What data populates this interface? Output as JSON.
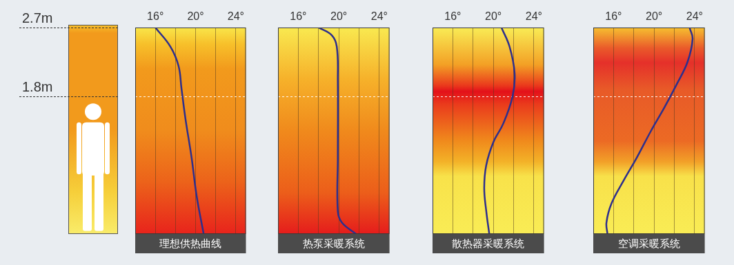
{
  "chart_data": [
    {
      "type": "line",
      "title": "理想供热曲线",
      "color": "#2e2f8c",
      "grid": true,
      "tick_labels": "x",
      "x": [
        16.0,
        17.5,
        18.3,
        18.6,
        19.0,
        19.6,
        20.1,
        20.8
      ],
      "y": [
        2.7,
        2.45,
        2.2,
        1.9,
        1.5,
        1.0,
        0.5,
        0.0
      ],
      "xlim": [
        14,
        25
      ],
      "xticks": [
        {
          "value": 16,
          "label": "16°"
        },
        {
          "value": 20,
          "label": "20°"
        },
        {
          "value": 24,
          "label": "24°"
        }
      ],
      "ylim": [
        0,
        2.7
      ],
      "yticks": [
        {
          "value": 1.8,
          "label": "1.8m"
        },
        {
          "value": 2.7,
          "label": "2.7m"
        }
      ]
    },
    {
      "type": "line",
      "title": "热泵采暖系统",
      "color": "#2e2f8c",
      "grid": true,
      "tick_labels": "x",
      "x": [
        18.0,
        19.3,
        19.8,
        19.9,
        19.9,
        19.9,
        20.3,
        21.7
      ],
      "y": [
        2.7,
        2.6,
        2.45,
        2.0,
        1.0,
        0.3,
        0.15,
        0.0
      ],
      "xlim": [
        14,
        25
      ],
      "xticks": [
        {
          "value": 16,
          "label": "16°"
        },
        {
          "value": 20,
          "label": "20°"
        },
        {
          "value": 24,
          "label": "24°"
        }
      ],
      "ylim": [
        0,
        2.7
      ],
      "yticks": [
        {
          "value": 1.8,
          "label": "1.8m"
        },
        {
          "value": 2.7,
          "label": "2.7m"
        }
      ]
    },
    {
      "type": "line",
      "title": "散热器采暖系统",
      "color": "#2e2f8c",
      "grid": true,
      "tick_labels": "x",
      "x": [
        20.8,
        21.6,
        22.1,
        21.9,
        21.0,
        20.0,
        19.3,
        19.1,
        19.3,
        19.6
      ],
      "y": [
        2.7,
        2.45,
        2.1,
        1.8,
        1.45,
        1.2,
        0.9,
        0.6,
        0.3,
        0.0
      ],
      "xlim": [
        14,
        25
      ],
      "xticks": [
        {
          "value": 16,
          "label": "16°"
        },
        {
          "value": 20,
          "label": "20°"
        },
        {
          "value": 24,
          "label": "24°"
        }
      ],
      "ylim": [
        0,
        2.7
      ],
      "yticks": [
        {
          "value": 1.8,
          "label": "1.8m"
        },
        {
          "value": 2.7,
          "label": "2.7m"
        }
      ]
    },
    {
      "type": "line",
      "title": "空调采暖系统",
      "color": "#2e2f8c",
      "grid": true,
      "tick_labels": "x",
      "x": [
        23.5,
        23.8,
        23.3,
        22.2,
        21.0,
        19.7,
        18.3,
        17.0,
        15.8,
        15.3,
        15.4
      ],
      "y": [
        2.7,
        2.55,
        2.25,
        1.95,
        1.65,
        1.35,
        1.0,
        0.7,
        0.4,
        0.15,
        0.0
      ],
      "xlim": [
        14,
        25
      ],
      "xticks": [
        {
          "value": 16,
          "label": "16°"
        },
        {
          "value": 20,
          "label": "20°"
        },
        {
          "value": 24,
          "label": "24°"
        }
      ],
      "ylim": [
        0,
        2.7
      ],
      "yticks": [
        {
          "value": 1.8,
          "label": "1.8m"
        },
        {
          "value": 2.7,
          "label": "2.7m"
        }
      ]
    }
  ]
}
